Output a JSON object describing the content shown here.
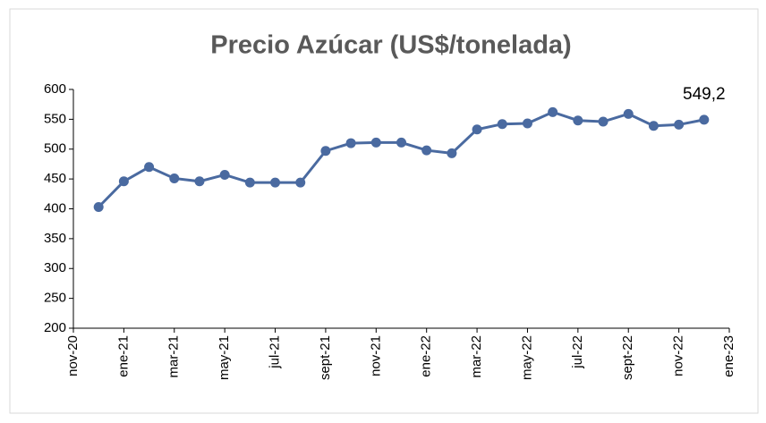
{
  "chart_data": {
    "type": "line",
    "title": "Precio Azúcar (US$/tonelada)",
    "categories": [
      "nov-20",
      null,
      "ene-21",
      null,
      "mar-21",
      null,
      "may-21",
      null,
      "jul-21",
      null,
      "sept-21",
      null,
      "nov-21",
      null,
      "ene-22",
      null,
      "mar-22",
      null,
      "may-22",
      null,
      "jul-22",
      null,
      "sept-22",
      null,
      "nov-22",
      null,
      "ene-23"
    ],
    "series": [
      {
        "name": "Precio Azúcar",
        "color": "#4a6aa0",
        "values": [
          null,
          403,
          446,
          470,
          451,
          446,
          457,
          444,
          444,
          444,
          497,
          510,
          511,
          511,
          498,
          493,
          533,
          542,
          543,
          562,
          548,
          546,
          559,
          539,
          541,
          549.2,
          null
        ],
        "value_labels": [
          null,
          null,
          null,
          null,
          null,
          null,
          null,
          null,
          null,
          null,
          null,
          null,
          null,
          null,
          null,
          null,
          null,
          null,
          null,
          null,
          null,
          null,
          null,
          null,
          null,
          "549,2",
          null
        ]
      }
    ],
    "ylim": [
      200,
      600
    ],
    "yticks": [
      200,
      250,
      300,
      350,
      400,
      450,
      500,
      550,
      600
    ]
  }
}
